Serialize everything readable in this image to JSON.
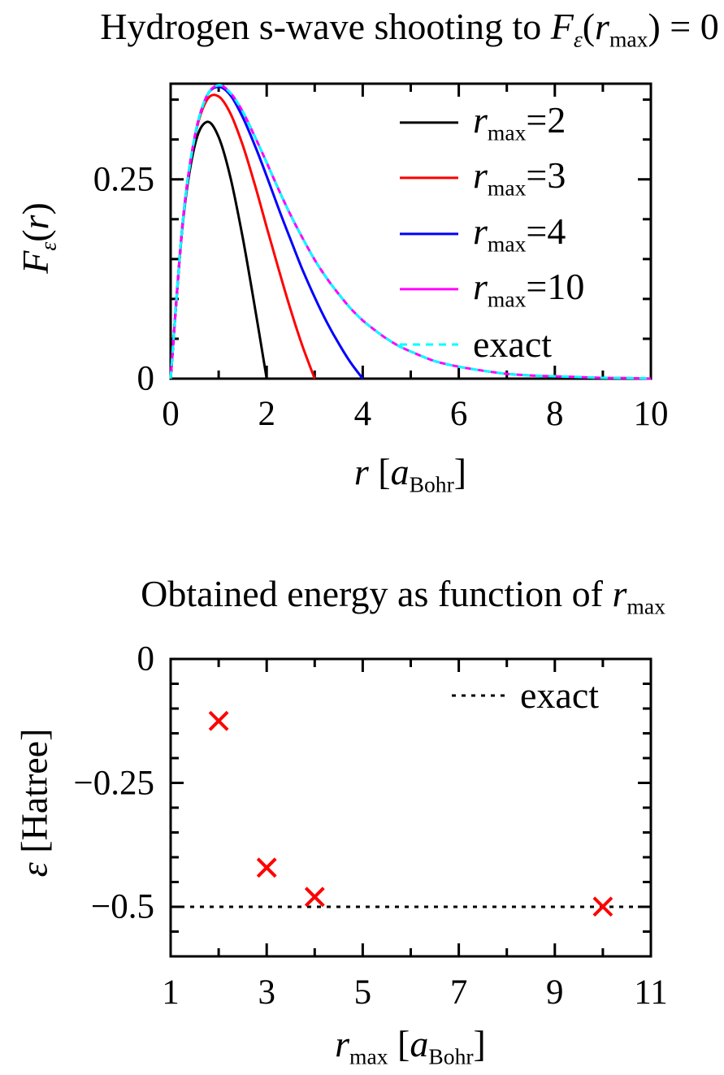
{
  "figure": {
    "background": "#ffffff",
    "text_color": "#000000",
    "axis_color": "#000000"
  },
  "text": {
    "top_title": [
      {
        "s": "n",
        "t": "Hydrogen s-wave shooting to "
      },
      {
        "s": "i",
        "t": "F"
      },
      {
        "s": "isub",
        "t": "ε"
      },
      {
        "s": "n",
        "t": "("
      },
      {
        "s": "i",
        "t": "r"
      },
      {
        "s": "sub",
        "t": "max"
      },
      {
        "s": "n",
        "t": ") = 0"
      }
    ],
    "top_xlabel": [
      {
        "s": "i",
        "t": "r"
      },
      {
        "s": "n",
        "t": " ["
      },
      {
        "s": "i",
        "t": "a"
      },
      {
        "s": "sub",
        "t": "Bohr"
      },
      {
        "s": "n",
        "t": "]"
      }
    ],
    "top_ylabel": [
      {
        "s": "i",
        "t": "F"
      },
      {
        "s": "isub",
        "t": "ε"
      },
      {
        "s": "n",
        "t": "("
      },
      {
        "s": "i",
        "t": "r"
      },
      {
        "s": "n",
        "t": ")"
      }
    ],
    "bottom_title": [
      {
        "s": "n",
        "t": "Obtained energy as function of "
      },
      {
        "s": "i",
        "t": "r"
      },
      {
        "s": "sub",
        "t": "max"
      }
    ],
    "bottom_xlabel": [
      {
        "s": "i",
        "t": "r"
      },
      {
        "s": "sub",
        "t": "max"
      },
      {
        "s": "n",
        "t": " ["
      },
      {
        "s": "i",
        "t": "a"
      },
      {
        "s": "sub",
        "t": "Bohr"
      },
      {
        "s": "n",
        "t": "]"
      }
    ],
    "bottom_ylabel": [
      {
        "s": "i",
        "t": "ε"
      },
      {
        "s": "n",
        "t": " [Hatree]"
      }
    ]
  },
  "chart_data": [
    {
      "type": "line",
      "title": "Hydrogen s-wave shooting to F_ε(r_max) = 0",
      "xlabel": "r [a_Bohr]",
      "ylabel": "F_ε(r)",
      "xlim": [
        0,
        10
      ],
      "ylim": [
        0,
        0.37
      ],
      "grid": false,
      "legend_position": "upper-right-inside",
      "xticks": [
        {
          "v": 0,
          "l": "0"
        },
        {
          "v": 2,
          "l": "2"
        },
        {
          "v": 4,
          "l": "4"
        },
        {
          "v": 6,
          "l": "6"
        },
        {
          "v": 8,
          "l": "8"
        },
        {
          "v": 10,
          "l": "10"
        }
      ],
      "xminor": [
        1,
        3,
        5,
        7,
        9
      ],
      "yticks": [
        {
          "v": 0,
          "l": "0"
        },
        {
          "v": 0.25,
          "l": "0.25"
        }
      ],
      "yminor": [
        0.05,
        0.1,
        0.15,
        0.2,
        0.3,
        0.35
      ],
      "series": [
        {
          "name": "r_max=2",
          "label": [
            {
              "s": "i",
              "t": "r"
            },
            {
              "s": "sub",
              "t": "max"
            },
            {
              "s": "n",
              "t": "=2"
            }
          ],
          "color": "#000000",
          "dash": "solid",
          "r_max": 2,
          "energy_hartree": -0.125,
          "points": [
            [
              0,
              0
            ],
            [
              0.25,
              0.193
            ],
            [
              0.5,
              0.292
            ],
            [
              0.75,
              0.322
            ],
            [
              1,
              0.303
            ],
            [
              1.25,
              0.251
            ],
            [
              1.5,
              0.177
            ],
            [
              1.75,
              0.091
            ],
            [
              2,
              0
            ]
          ]
        },
        {
          "name": "r_max=3",
          "label": [
            {
              "s": "i",
              "t": "r"
            },
            {
              "s": "sub",
              "t": "max"
            },
            {
              "s": "n",
              "t": "=3"
            }
          ],
          "color": "#ff0000",
          "dash": "solid",
          "r_max": 3,
          "energy_hartree": -0.421,
          "points": [
            [
              0,
              0
            ],
            [
              0.25,
              0.195
            ],
            [
              0.5,
              0.302
            ],
            [
              0.75,
              0.349
            ],
            [
              1,
              0.354
            ],
            [
              1.25,
              0.332
            ],
            [
              1.5,
              0.293
            ],
            [
              1.75,
              0.244
            ],
            [
              2,
              0.19
            ],
            [
              2.25,
              0.137
            ],
            [
              2.5,
              0.086
            ],
            [
              2.75,
              0.04
            ],
            [
              3,
              0
            ]
          ]
        },
        {
          "name": "r_max=4",
          "label": [
            {
              "s": "i",
              "t": "r"
            },
            {
              "s": "sub",
              "t": "max"
            },
            {
              "s": "n",
              "t": "=4"
            }
          ],
          "color": "#0000ff",
          "dash": "solid",
          "r_max": 4,
          "energy_hartree": -0.48,
          "points": [
            [
              0,
              0
            ],
            [
              0.25,
              0.195
            ],
            [
              0.5,
              0.303
            ],
            [
              0.75,
              0.354
            ],
            [
              1,
              0.366
            ],
            [
              1.25,
              0.355
            ],
            [
              1.5,
              0.328
            ],
            [
              1.75,
              0.293
            ],
            [
              2,
              0.254
            ],
            [
              2.25,
              0.213
            ],
            [
              2.5,
              0.174
            ],
            [
              2.75,
              0.136
            ],
            [
              3,
              0.102
            ],
            [
              3.25,
              0.071
            ],
            [
              3.5,
              0.044
            ],
            [
              3.75,
              0.02
            ],
            [
              4,
              0
            ]
          ]
        },
        {
          "name": "r_max=10",
          "label": [
            {
              "s": "i",
              "t": "r"
            },
            {
              "s": "sub",
              "t": "max"
            },
            {
              "s": "n",
              "t": "=10"
            }
          ],
          "color": "#ff00ff",
          "dash": "solid",
          "r_max": 10,
          "energy_hartree": -0.4996,
          "points": [
            [
              0,
              0
            ],
            [
              0.25,
              0.195
            ],
            [
              0.5,
              0.303
            ],
            [
              0.75,
              0.354
            ],
            [
              1,
              0.368
            ],
            [
              1.25,
              0.358
            ],
            [
              1.5,
              0.335
            ],
            [
              1.75,
              0.304
            ],
            [
              2,
              0.271
            ],
            [
              2.25,
              0.237
            ],
            [
              2.5,
              0.205
            ],
            [
              2.75,
              0.176
            ],
            [
              3,
              0.149
            ],
            [
              3.25,
              0.126
            ],
            [
              3.5,
              0.106
            ],
            [
              3.75,
              0.088
            ],
            [
              4,
              0.073
            ],
            [
              4.25,
              0.061
            ],
            [
              4.5,
              0.05
            ],
            [
              4.75,
              0.041
            ],
            [
              5,
              0.034
            ],
            [
              5.5,
              0.022
            ],
            [
              6,
              0.015
            ],
            [
              6.5,
              0.01
            ],
            [
              7,
              0.006
            ],
            [
              7.5,
              0.004
            ],
            [
              8,
              0.003
            ],
            [
              8.5,
              0.002
            ],
            [
              9,
              0.001
            ],
            [
              9.5,
              0.0007
            ],
            [
              10,
              0
            ]
          ]
        },
        {
          "name": "exact",
          "label": [
            {
              "s": "n",
              "t": "exact"
            }
          ],
          "color": "#00ffff",
          "dash": "dashed",
          "points": [
            [
              0,
              0
            ],
            [
              0.25,
              0.195
            ],
            [
              0.5,
              0.303
            ],
            [
              0.75,
              0.354
            ],
            [
              1,
              0.368
            ],
            [
              1.25,
              0.358
            ],
            [
              1.5,
              0.335
            ],
            [
              1.75,
              0.304
            ],
            [
              2,
              0.271
            ],
            [
              2.25,
              0.237
            ],
            [
              2.5,
              0.205
            ],
            [
              2.75,
              0.176
            ],
            [
              3,
              0.149
            ],
            [
              3.25,
              0.126
            ],
            [
              3.5,
              0.106
            ],
            [
              3.75,
              0.088
            ],
            [
              4,
              0.073
            ],
            [
              4.25,
              0.061
            ],
            [
              4.5,
              0.05
            ],
            [
              4.75,
              0.041
            ],
            [
              5,
              0.034
            ],
            [
              5.5,
              0.022
            ],
            [
              6,
              0.015
            ],
            [
              6.5,
              0.01
            ],
            [
              7,
              0.006
            ],
            [
              7.5,
              0.004
            ],
            [
              8,
              0.003
            ],
            [
              8.5,
              0.002
            ],
            [
              9,
              0.001
            ],
            [
              9.5,
              0.0007
            ],
            [
              10,
              0.0005
            ]
          ]
        }
      ]
    },
    {
      "type": "scatter",
      "title": "Obtained energy as function of r_max",
      "xlabel": "r_max [a_Bohr]",
      "ylabel": "ε [Hatree]",
      "xlim": [
        1,
        11
      ],
      "ylim": [
        -0.6,
        0
      ],
      "grid": false,
      "legend_position": "upper-right-inside",
      "xticks": [
        {
          "v": 1,
          "l": "1"
        },
        {
          "v": 3,
          "l": "3"
        },
        {
          "v": 5,
          "l": "5"
        },
        {
          "v": 7,
          "l": "7"
        },
        {
          "v": 9,
          "l": "9"
        },
        {
          "v": 11,
          "l": "11"
        }
      ],
      "xminor": [
        2,
        4,
        6,
        8,
        10
      ],
      "yticks": [
        {
          "v": 0,
          "l": "0"
        },
        {
          "v": -0.25,
          "l": "−0.25"
        },
        {
          "v": -0.5,
          "l": "−0.5"
        }
      ],
      "yminor": [
        -0.05,
        -0.1,
        -0.15,
        -0.2,
        -0.3,
        -0.35,
        -0.4,
        -0.45,
        -0.55
      ],
      "marker": {
        "shape": "x",
        "color": "#ff0000"
      },
      "points": [
        [
          2,
          -0.125
        ],
        [
          3,
          -0.421
        ],
        [
          4,
          -0.48
        ],
        [
          10,
          -0.4996
        ]
      ],
      "reference_line": {
        "y": -0.5,
        "style": "dotted",
        "color": "#000000",
        "label": [
          {
            "s": "n",
            "t": "exact"
          }
        ],
        "name": "exact"
      }
    }
  ]
}
